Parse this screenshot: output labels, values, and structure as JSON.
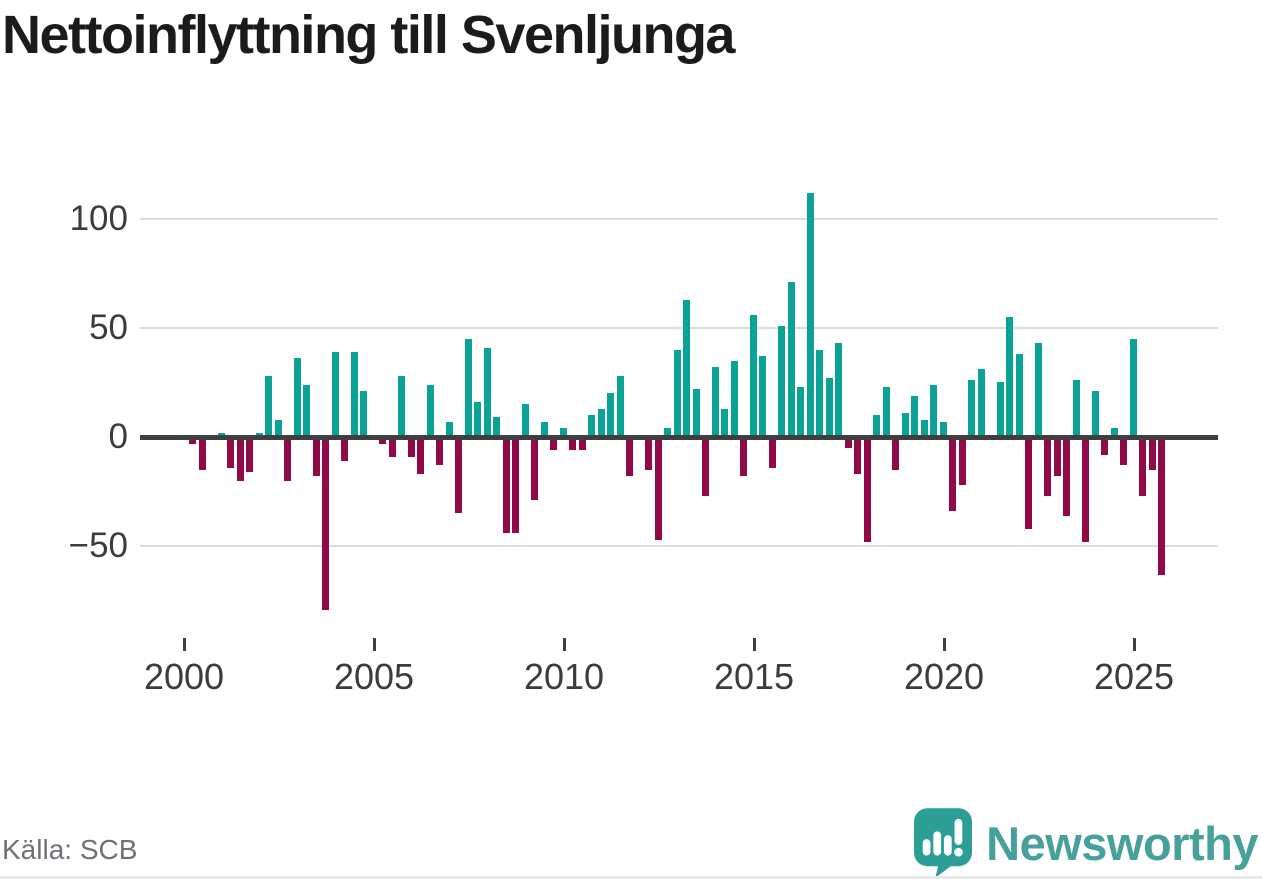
{
  "title": "Nettoinflyttning till Svenljunga",
  "source": "Källa: SCB",
  "branding": {
    "name": "Newsworthy",
    "logo_icon": "speech-bubble-bar-chart-icon"
  },
  "chart_data": {
    "type": "bar",
    "frequency": "quarterly",
    "title": "Nettoinflyttning till Svenljunga",
    "xlabel": "",
    "ylabel": "",
    "ylim": [
      -84,
      118
    ],
    "grid": "horizontal",
    "legend": "none",
    "y_ticks": [
      100,
      50,
      0,
      -50
    ],
    "y_tick_labels": [
      "100",
      "50",
      "0",
      "−50"
    ],
    "x_tick_labels": [
      "2000",
      "2005",
      "2010",
      "2015",
      "2020",
      "2025"
    ],
    "colors": {
      "positive": "#0aa396",
      "negative": "#8f0a46"
    },
    "years": [
      {
        "year": 2000,
        "values": [
          -3,
          -15,
          1,
          2
        ]
      },
      {
        "year": 2001,
        "values": [
          -14,
          -20,
          -16,
          2
        ]
      },
      {
        "year": 2002,
        "values": [
          28,
          8,
          -20,
          36
        ]
      },
      {
        "year": 2003,
        "values": [
          24,
          -18,
          -79,
          39
        ]
      },
      {
        "year": 2004,
        "values": [
          -11,
          39,
          21,
          1
        ]
      },
      {
        "year": 2005,
        "values": [
          -3,
          -9,
          28,
          -9
        ]
      },
      {
        "year": 2006,
        "values": [
          -17,
          24,
          -13,
          7
        ]
      },
      {
        "year": 2007,
        "values": [
          -35,
          45,
          16,
          41
        ]
      },
      {
        "year": 2008,
        "values": [
          9,
          -44,
          -44,
          15
        ]
      },
      {
        "year": 2009,
        "values": [
          -29,
          7,
          -6,
          4
        ]
      },
      {
        "year": 2010,
        "values": [
          -6,
          -6,
          10,
          13
        ]
      },
      {
        "year": 2011,
        "values": [
          20,
          28,
          -18,
          0
        ]
      },
      {
        "year": 2012,
        "values": [
          -15,
          -47,
          4,
          40
        ]
      },
      {
        "year": 2013,
        "values": [
          63,
          22,
          -27,
          32
        ]
      },
      {
        "year": 2014,
        "values": [
          13,
          35,
          -18,
          56
        ]
      },
      {
        "year": 2015,
        "values": [
          37,
          -14,
          51,
          71
        ]
      },
      {
        "year": 2016,
        "values": [
          23,
          112,
          40,
          27
        ]
      },
      {
        "year": 2017,
        "values": [
          43,
          -5,
          -17,
          -48
        ]
      },
      {
        "year": 2018,
        "values": [
          10,
          23,
          -15,
          11
        ]
      },
      {
        "year": 2019,
        "values": [
          19,
          8,
          24,
          7
        ]
      },
      {
        "year": 2020,
        "values": [
          -34,
          -22,
          26,
          31
        ]
      },
      {
        "year": 2021,
        "values": [
          0,
          25,
          55,
          38
        ]
      },
      {
        "year": 2022,
        "values": [
          -42,
          43,
          -27,
          -18
        ]
      },
      {
        "year": 2023,
        "values": [
          -36,
          26,
          -48,
          21
        ]
      },
      {
        "year": 2024,
        "values": [
          -8,
          4,
          -13,
          45
        ]
      },
      {
        "year": 2025,
        "values": [
          -27,
          -15,
          -63
        ]
      }
    ]
  }
}
